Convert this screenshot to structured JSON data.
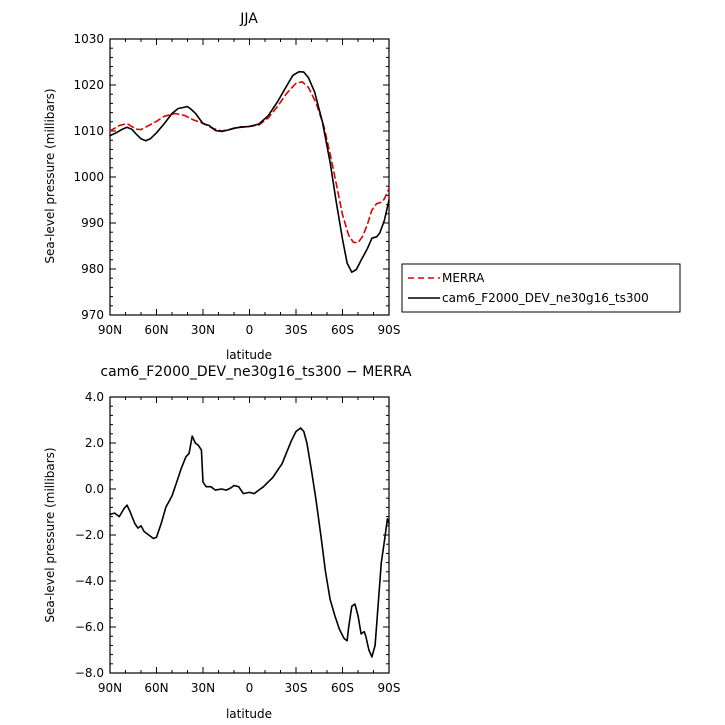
{
  "chart_data": [
    {
      "type": "line",
      "title": "JJA",
      "xlabel": "latitude",
      "ylabel": "Sea-level pressure (millibars)",
      "xlim": [
        90,
        -90
      ],
      "ylim": [
        970,
        1030
      ],
      "x_ticks": [
        90,
        60,
        30,
        0,
        -30,
        -60,
        -90
      ],
      "x_tick_labels": [
        "90N",
        "60N",
        "30N",
        "0",
        "30S",
        "60S",
        "90S"
      ],
      "y_ticks": [
        970,
        980,
        990,
        1000,
        1010,
        1020,
        1030
      ],
      "y_tick_labels": [
        "970",
        "980",
        "990",
        "1000",
        "1010",
        "1020",
        "1030"
      ],
      "legend_position": "outside-right",
      "series": [
        {
          "name": "MERRA",
          "color": "#e00000",
          "dash": true,
          "points": [
            [
              90,
              1010
            ],
            [
              84,
              1011.2
            ],
            [
              79,
              1011.6
            ],
            [
              76,
              1011
            ],
            [
              73,
              1010.4
            ],
            [
              70,
              1010.3
            ],
            [
              65,
              1011.2
            ],
            [
              60,
              1012.1
            ],
            [
              55,
              1013.2
            ],
            [
              48,
              1013.8
            ],
            [
              42,
              1013.4
            ],
            [
              36,
              1012.4
            ],
            [
              30,
              1011.7
            ],
            [
              24,
              1010.6
            ],
            [
              18,
              1010
            ],
            [
              12,
              1010.4
            ],
            [
              6,
              1010.9
            ],
            [
              0,
              1011
            ],
            [
              -6,
              1011.3
            ],
            [
              -12,
              1012.8
            ],
            [
              -18,
              1015.3
            ],
            [
              -24,
              1018.2
            ],
            [
              -30,
              1020.4
            ],
            [
              -34,
              1020.7
            ],
            [
              -38,
              1019.5
            ],
            [
              -43,
              1016.1
            ],
            [
              -48,
              1011
            ],
            [
              -52,
              1005
            ],
            [
              -56,
              998.5
            ],
            [
              -60,
              991.8
            ],
            [
              -64,
              987.3
            ],
            [
              -67,
              985.8
            ],
            [
              -70,
              985.7
            ],
            [
              -73,
              987.1
            ],
            [
              -76,
              989.6
            ],
            [
              -79,
              992.8
            ],
            [
              -82,
              994.2
            ],
            [
              -85,
              994.5
            ],
            [
              -87,
              995.2
            ],
            [
              -90,
              997.5
            ]
          ]
        },
        {
          "name": "cam6_F2000_DEV_ne30g16_ts300",
          "color": "#000000",
          "dash": false,
          "points": [
            [
              90,
              1009
            ],
            [
              86,
              1009.6
            ],
            [
              82,
              1010.4
            ],
            [
              79,
              1010.8
            ],
            [
              76,
              1010.4
            ],
            [
              73,
              1009.3
            ],
            [
              70,
              1008.3
            ],
            [
              67,
              1007.9
            ],
            [
              64,
              1008.3
            ],
            [
              60,
              1009.6
            ],
            [
              55,
              1011.6
            ],
            [
              50,
              1013.8
            ],
            [
              46,
              1014.9
            ],
            [
              40,
              1015.3
            ],
            [
              38,
              1014.8
            ],
            [
              35,
              1013.9
            ],
            [
              30,
              1011.6
            ],
            [
              26,
              1011.2
            ],
            [
              22,
              1010.1
            ],
            [
              18,
              1009.9
            ],
            [
              14,
              1010.2
            ],
            [
              10,
              1010.6
            ],
            [
              6,
              1010.8
            ],
            [
              0,
              1011
            ],
            [
              -6,
              1011.5
            ],
            [
              -12,
              1013.3
            ],
            [
              -18,
              1016.3
            ],
            [
              -24,
              1019.8
            ],
            [
              -28,
              1022.1
            ],
            [
              -32,
              1022.9
            ],
            [
              -35,
              1022.8
            ],
            [
              -38,
              1021.6
            ],
            [
              -42,
              1018.5
            ],
            [
              -47,
              1012
            ],
            [
              -52,
              1003.2
            ],
            [
              -56,
              994.5
            ],
            [
              -60,
              986.5
            ],
            [
              -63,
              981.3
            ],
            [
              -66,
              979.3
            ],
            [
              -69,
              979.9
            ],
            [
              -72,
              981.9
            ],
            [
              -76,
              984.4
            ],
            [
              -79,
              986.7
            ],
            [
              -82,
              987
            ],
            [
              -84,
              987.8
            ],
            [
              -87,
              990.5
            ],
            [
              -90,
              995
            ]
          ]
        }
      ]
    },
    {
      "type": "line",
      "title": "cam6_F2000_DEV_ne30g16_ts300 − MERRA",
      "xlabel": "latitude",
      "ylabel": "Sea-level pressure (millibars)",
      "xlim": [
        90,
        -90
      ],
      "ylim": [
        -8,
        4
      ],
      "x_ticks": [
        90,
        60,
        30,
        0,
        -30,
        -60,
        -90
      ],
      "x_tick_labels": [
        "90N",
        "60N",
        "30N",
        "0",
        "30S",
        "60S",
        "90S"
      ],
      "y_ticks": [
        -8,
        -6,
        -4,
        -2,
        0,
        2,
        4
      ],
      "y_tick_labels": [
        "−8.0",
        "−6.0",
        "−4.0",
        "−2.0",
        "0.0",
        "2.0",
        "4.0"
      ],
      "series": [
        {
          "color": "#000000",
          "dash": false,
          "points": [
            [
              90,
              -1.1
            ],
            [
              87,
              -1.05
            ],
            [
              84,
              -1.2
            ],
            [
              81,
              -0.85
            ],
            [
              79,
              -0.7
            ],
            [
              77,
              -1.0
            ],
            [
              74,
              -1.5
            ],
            [
              72,
              -1.7
            ],
            [
              70,
              -1.6
            ],
            [
              68,
              -1.85
            ],
            [
              65,
              -2.0
            ],
            [
              62,
              -2.15
            ],
            [
              60,
              -2.1
            ],
            [
              57,
              -1.5
            ],
            [
              54,
              -0.8
            ],
            [
              50,
              -0.3
            ],
            [
              47,
              0.3
            ],
            [
              44,
              0.9
            ],
            [
              41,
              1.4
            ],
            [
              39,
              1.55
            ],
            [
              37,
              2.3
            ],
            [
              35,
              2.0
            ],
            [
              33,
              1.9
            ],
            [
              31,
              1.7
            ],
            [
              30,
              0.3
            ],
            [
              28,
              0.1
            ],
            [
              25,
              0.1
            ],
            [
              22,
              -0.05
            ],
            [
              18,
              0.0
            ],
            [
              15,
              -0.05
            ],
            [
              12,
              0.05
            ],
            [
              10,
              0.15
            ],
            [
              7,
              0.1
            ],
            [
              4,
              -0.2
            ],
            [
              0,
              -0.15
            ],
            [
              -3,
              -0.2
            ],
            [
              -6,
              -0.05
            ],
            [
              -9,
              0.1
            ],
            [
              -12,
              0.3
            ],
            [
              -15,
              0.5
            ],
            [
              -18,
              0.8
            ],
            [
              -21,
              1.1
            ],
            [
              -24,
              1.6
            ],
            [
              -27,
              2.1
            ],
            [
              -30,
              2.5
            ],
            [
              -33,
              2.65
            ],
            [
              -35,
              2.5
            ],
            [
              -37,
              2.0
            ],
            [
              -40,
              0.8
            ],
            [
              -43,
              -0.5
            ],
            [
              -46,
              -2.0
            ],
            [
              -49,
              -3.6
            ],
            [
              -52,
              -4.8
            ],
            [
              -55,
              -5.5
            ],
            [
              -58,
              -6.1
            ],
            [
              -61,
              -6.5
            ],
            [
              -63,
              -6.6
            ],
            [
              -64,
              -6.0
            ],
            [
              -66,
              -5.1
            ],
            [
              -68,
              -5.0
            ],
            [
              -70,
              -5.5
            ],
            [
              -72,
              -6.3
            ],
            [
              -74,
              -6.2
            ],
            [
              -75,
              -6.4
            ],
            [
              -77,
              -7.0
            ],
            [
              -79,
              -7.3
            ],
            [
              -81,
              -6.8
            ],
            [
              -83,
              -5.0
            ],
            [
              -85,
              -3.2
            ],
            [
              -87,
              -2.3
            ],
            [
              -89,
              -1.3
            ],
            [
              -90,
              -1.5
            ]
          ]
        }
      ]
    }
  ]
}
